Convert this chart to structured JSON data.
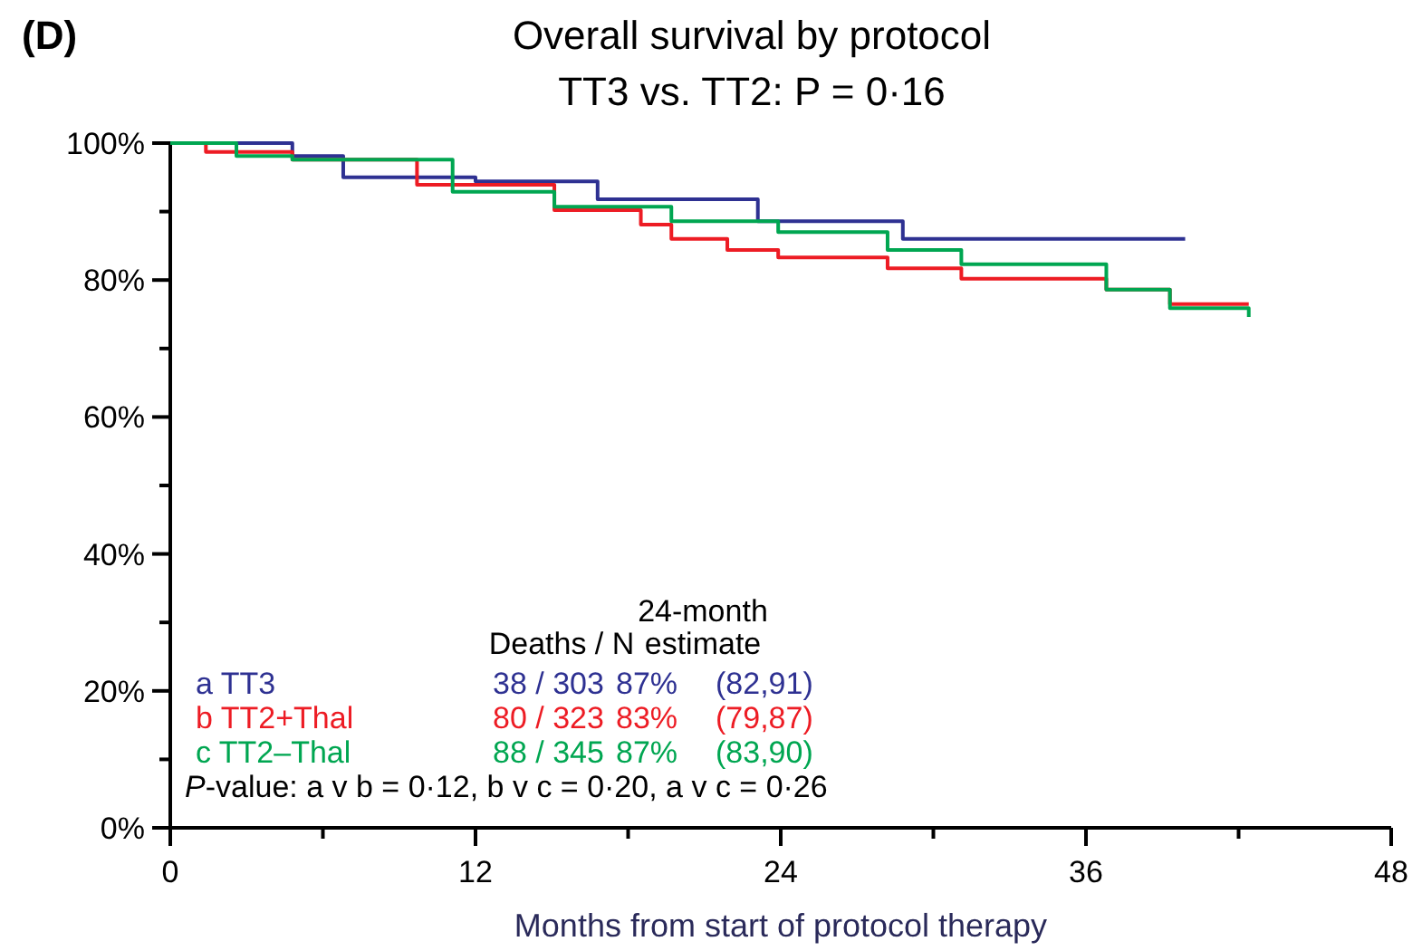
{
  "chart_data": {
    "type": "step",
    "title": "Overall survival by protocol",
    "subtitle": "TT3 vs. TT2: P = 0·16",
    "xlabel": "Months from start of protocol therapy",
    "xlim": [
      0,
      48
    ],
    "ylim": [
      0,
      100
    ],
    "xticks": [
      0,
      {
        "value": 6,
        "label": null
      },
      12,
      {
        "value": 18,
        "label": null
      },
      24,
      {
        "value": 30,
        "label": null
      },
      36,
      {
        "value": 42,
        "label": null
      },
      48
    ],
    "yticks": [
      {
        "value": 0,
        "label": "0%"
      },
      {
        "value": 10,
        "label": null
      },
      {
        "value": 20,
        "label": "20%"
      },
      {
        "value": 30,
        "label": null
      },
      {
        "value": 40,
        "label": "40%"
      },
      {
        "value": 50,
        "label": null
      },
      {
        "value": 60,
        "label": "60%"
      },
      {
        "value": 70,
        "label": null
      },
      {
        "value": 80,
        "label": "80%"
      },
      {
        "value": 90,
        "label": null
      },
      {
        "value": 100,
        "label": "100%"
      }
    ],
    "grid": false,
    "legend": "bottom",
    "marker": "none",
    "line_style": "solid",
    "series": [
      {
        "name": "a TT3",
        "color": "#2e3192",
        "x": [
          0,
          4.8,
          6.8,
          12,
          16.8,
          23.1,
          28.8,
          39.9
        ],
        "values": [
          100,
          98.1,
          95,
          94.4,
          91.8,
          88.6,
          86,
          86
        ]
      },
      {
        "name": "b TT2+Thal",
        "color": "#ed1c24",
        "x": [
          0,
          1.4,
          4.8,
          9.7,
          15.1,
          18.5,
          19.7,
          21.9,
          23.9,
          28.2,
          31.1,
          36.8,
          39.3,
          42.4
        ],
        "values": [
          100,
          98.7,
          97.6,
          93.9,
          90.2,
          88.1,
          86,
          84.4,
          83.3,
          81.7,
          80.2,
          78.6,
          76.5,
          76.5
        ]
      },
      {
        "name": "c TT2–Thal",
        "color": "#00a651",
        "x": [
          0,
          2.6,
          4.8,
          11.1,
          15.1,
          19.7,
          23.9,
          28.2,
          31.1,
          36.8,
          39.3,
          42.4
        ],
        "values": [
          100,
          98.1,
          97.6,
          92.9,
          90.7,
          88.6,
          87,
          84.4,
          82.3,
          78.6,
          75.9,
          74.6
        ]
      }
    ],
    "annotations": [
      "(D)",
      "Deaths / N",
      "24-month",
      "estimate",
      "38 / 303",
      "87%",
      "(82,91)",
      "80 / 323",
      "83%",
      "(79,87)",
      "88 / 345",
      "87%",
      "(83,90)",
      "P-value: a v b = 0·12, b v c = 0·20, a v c = 0·26"
    ]
  }
}
